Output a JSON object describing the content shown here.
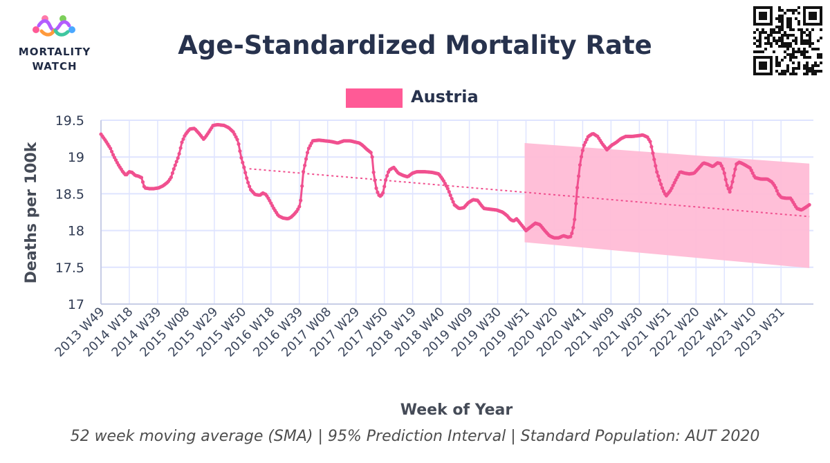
{
  "header": {
    "logo_line1": "MORTALITY",
    "logo_line2": "WATCH",
    "title": "Age-Standardized Mortality Rate"
  },
  "caption": "52 week moving average (SMA) | 95% Prediction Interval | Standard Population: AUT 2020",
  "colors": {
    "series": "#f0508f",
    "legend_swatch": "#ff5a96",
    "band": "#ffbcd6",
    "grid": "#dfe4ff",
    "axis": "#c7cde6",
    "trend": "#f0508f"
  },
  "chart_data": {
    "type": "line",
    "title": "Age-Standardized Mortality Rate",
    "xlabel": "Week of Year",
    "ylabel": "Deaths per 100k",
    "ylim": [
      17,
      19.5
    ],
    "yticks": [
      17,
      17.5,
      18,
      18.5,
      19,
      19.5
    ],
    "legend": {
      "position": "top-center",
      "entries": [
        "Austria"
      ]
    },
    "grid": true,
    "x_tick_labels": [
      "2013 W49",
      "2014 W18",
      "2014 W39",
      "2015 W08",
      "2015 W29",
      "2015 W50",
      "2016 W18",
      "2016 W39",
      "2017 W08",
      "2017 W29",
      "2017 W50",
      "2018 W19",
      "2018 W40",
      "2019 W09",
      "2019 W30",
      "2019 W51",
      "2020 W20",
      "2020 W41",
      "2021 W09",
      "2021 W30",
      "2021 W51",
      "2022 W20",
      "2022 W41",
      "2023 W10",
      "2023 W31"
    ],
    "x_tick_index": [
      0,
      21,
      42,
      63,
      84,
      105,
      126,
      147,
      168,
      189,
      210,
      231,
      252,
      273,
      294,
      315,
      336,
      357,
      378,
      399,
      420,
      441,
      462,
      483,
      504
    ],
    "x_range": [
      0,
      528
    ],
    "series": [
      {
        "name": "Austria",
        "x_start": 0,
        "x_end": 525,
        "anchors": [
          [
            0,
            19.31
          ],
          [
            3,
            19.22
          ],
          [
            6,
            19.12
          ],
          [
            8,
            19.02
          ],
          [
            11,
            18.9
          ],
          [
            14,
            18.8
          ],
          [
            16,
            18.75
          ],
          [
            18,
            18.8
          ],
          [
            20,
            18.79
          ],
          [
            22,
            18.75
          ],
          [
            24,
            18.74
          ],
          [
            26,
            18.72
          ],
          [
            28,
            18.58
          ],
          [
            31,
            18.57
          ],
          [
            34,
            18.57
          ],
          [
            37,
            18.58
          ],
          [
            40,
            18.61
          ],
          [
            43,
            18.66
          ],
          [
            45,
            18.72
          ],
          [
            47,
            18.85
          ],
          [
            50,
            19.02
          ],
          [
            52,
            19.2
          ],
          [
            54,
            19.3
          ],
          [
            57,
            19.38
          ],
          [
            60,
            19.39
          ],
          [
            63,
            19.32
          ],
          [
            66,
            19.24
          ],
          [
            69,
            19.33
          ],
          [
            72,
            19.43
          ],
          [
            75,
            19.44
          ],
          [
            79,
            19.43
          ],
          [
            82,
            19.4
          ],
          [
            85,
            19.34
          ],
          [
            88,
            19.22
          ],
          [
            90,
            19.0
          ],
          [
            92,
            18.85
          ],
          [
            94,
            18.68
          ],
          [
            96,
            18.56
          ],
          [
            99,
            18.49
          ],
          [
            102,
            18.48
          ],
          [
            104,
            18.51
          ],
          [
            106,
            18.49
          ],
          [
            108,
            18.42
          ],
          [
            111,
            18.3
          ],
          [
            114,
            18.2
          ],
          [
            117,
            18.17
          ],
          [
            120,
            18.16
          ],
          [
            122,
            18.18
          ],
          [
            124,
            18.22
          ],
          [
            126,
            18.27
          ],
          [
            128,
            18.35
          ],
          [
            130,
            18.8
          ],
          [
            133,
            19.1
          ],
          [
            136,
            19.22
          ],
          [
            140,
            19.23
          ],
          [
            144,
            19.22
          ],
          [
            148,
            19.21
          ],
          [
            152,
            19.19
          ],
          [
            156,
            19.22
          ],
          [
            160,
            19.22
          ],
          [
            164,
            19.2
          ],
          [
            166,
            19.19
          ],
          [
            168,
            19.16
          ],
          [
            171,
            19.1
          ],
          [
            174,
            19.05
          ],
          [
            175,
            18.8
          ],
          [
            177,
            18.55
          ],
          [
            179,
            18.46
          ],
          [
            181,
            18.5
          ],
          [
            183,
            18.7
          ],
          [
            185,
            18.82
          ],
          [
            188,
            18.86
          ],
          [
            191,
            18.78
          ],
          [
            194,
            18.75
          ],
          [
            197,
            18.73
          ],
          [
            200,
            18.78
          ],
          [
            203,
            18.8
          ],
          [
            208,
            18.8
          ],
          [
            213,
            18.79
          ],
          [
            217,
            18.77
          ],
          [
            220,
            18.68
          ],
          [
            223,
            18.56
          ],
          [
            225,
            18.45
          ],
          [
            227,
            18.35
          ],
          [
            230,
            18.3
          ],
          [
            233,
            18.31
          ],
          [
            236,
            18.38
          ],
          [
            239,
            18.42
          ],
          [
            242,
            18.41
          ],
          [
            244,
            18.35
          ],
          [
            246,
            18.3
          ],
          [
            250,
            18.29
          ],
          [
            254,
            18.28
          ],
          [
            258,
            18.25
          ],
          [
            261,
            18.2
          ],
          [
            263,
            18.15
          ],
          [
            265,
            18.13
          ],
          [
            267,
            18.16
          ],
          [
            270,
            18.08
          ],
          [
            273,
            18.0
          ],
          [
            276,
            18.05
          ],
          [
            279,
            18.1
          ],
          [
            282,
            18.08
          ],
          [
            285,
            18.0
          ],
          [
            288,
            17.93
          ],
          [
            291,
            17.9
          ],
          [
            294,
            17.9
          ],
          [
            297,
            17.93
          ],
          [
            300,
            17.91
          ],
          [
            302,
            17.92
          ],
          [
            304,
            18.1
          ],
          [
            306,
            18.6
          ],
          [
            308,
            18.95
          ],
          [
            310,
            19.15
          ],
          [
            313,
            19.28
          ],
          [
            316,
            19.32
          ],
          [
            319,
            19.28
          ],
          [
            322,
            19.18
          ],
          [
            325,
            19.1
          ],
          [
            328,
            19.16
          ],
          [
            331,
            19.2
          ],
          [
            334,
            19.25
          ],
          [
            337,
            19.28
          ],
          [
            341,
            19.28
          ],
          [
            345,
            19.29
          ],
          [
            348,
            19.3
          ],
          [
            351,
            19.27
          ],
          [
            353,
            19.2
          ],
          [
            355,
            19.0
          ],
          [
            357,
            18.8
          ],
          [
            359,
            18.67
          ],
          [
            361,
            18.55
          ],
          [
            363,
            18.47
          ],
          [
            366,
            18.55
          ],
          [
            369,
            18.68
          ],
          [
            372,
            18.8
          ],
          [
            375,
            18.78
          ],
          [
            378,
            18.77
          ],
          [
            381,
            18.78
          ],
          [
            384,
            18.85
          ],
          [
            387,
            18.92
          ],
          [
            390,
            18.9
          ],
          [
            393,
            18.87
          ],
          [
            396,
            18.92
          ],
          [
            398,
            18.91
          ],
          [
            400,
            18.82
          ],
          [
            402,
            18.62
          ],
          [
            404,
            18.52
          ],
          [
            406,
            18.7
          ],
          [
            408,
            18.9
          ],
          [
            410,
            18.93
          ],
          [
            413,
            18.9
          ],
          [
            417,
            18.85
          ],
          [
            420,
            18.72
          ],
          [
            424,
            18.7
          ],
          [
            428,
            18.7
          ],
          [
            431,
            18.66
          ],
          [
            433,
            18.6
          ],
          [
            435,
            18.5
          ],
          [
            437,
            18.45
          ],
          [
            440,
            18.44
          ],
          [
            443,
            18.44
          ],
          [
            445,
            18.37
          ],
          [
            447,
            18.3
          ],
          [
            450,
            18.28
          ],
          [
            453,
            18.32
          ],
          [
            455,
            18.35
          ]
        ]
      }
    ],
    "trend_line": {
      "x": [
        110,
        525
      ],
      "y": [
        18.84,
        18.19
      ]
    },
    "prediction_interval": {
      "x": [
        314,
        525
      ],
      "upper": [
        19.19,
        18.91
      ],
      "lower": [
        17.84,
        17.49
      ]
    }
  }
}
